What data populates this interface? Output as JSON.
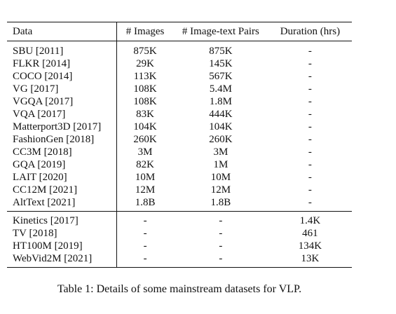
{
  "table": {
    "headers": [
      "Data",
      "# Images",
      "# Image-text Pairs",
      "Duration (hrs)"
    ],
    "image_rows": [
      [
        "SBU [2011]",
        "875K",
        "875K",
        "-"
      ],
      [
        "FLKR [2014]",
        "29K",
        "145K",
        "-"
      ],
      [
        "COCO [2014]",
        "113K",
        "567K",
        "-"
      ],
      [
        "VG [2017]",
        "108K",
        "5.4M",
        "-"
      ],
      [
        "VGQA [2017]",
        "108K",
        "1.8M",
        "-"
      ],
      [
        "VQA [2017]",
        "83K",
        "444K",
        "-"
      ],
      [
        "Matterport3D [2017]",
        "104K",
        "104K",
        "-"
      ],
      [
        "FashionGen [2018]",
        "260K",
        "260K",
        "-"
      ],
      [
        "CC3M [2018]",
        "3M",
        "3M",
        "-"
      ],
      [
        "GQA [2019]",
        "82K",
        "1M",
        "-"
      ],
      [
        "LAIT [2020]",
        "10M",
        "10M",
        "-"
      ],
      [
        "CC12M [2021]",
        "12M",
        "12M",
        "-"
      ],
      [
        "AltText [2021]",
        "1.8B",
        "1.8B",
        "-"
      ]
    ],
    "video_rows": [
      [
        "Kinetics [2017]",
        "-",
        "-",
        "1.4K"
      ],
      [
        "TV [2018]",
        "-",
        "-",
        "461"
      ],
      [
        "HT100M [2019]",
        "-",
        "-",
        "134K"
      ],
      [
        "WebVid2M [2021]",
        "-",
        "-",
        "13K"
      ]
    ]
  },
  "caption": "Table 1: Details of some mainstream datasets for VLP."
}
